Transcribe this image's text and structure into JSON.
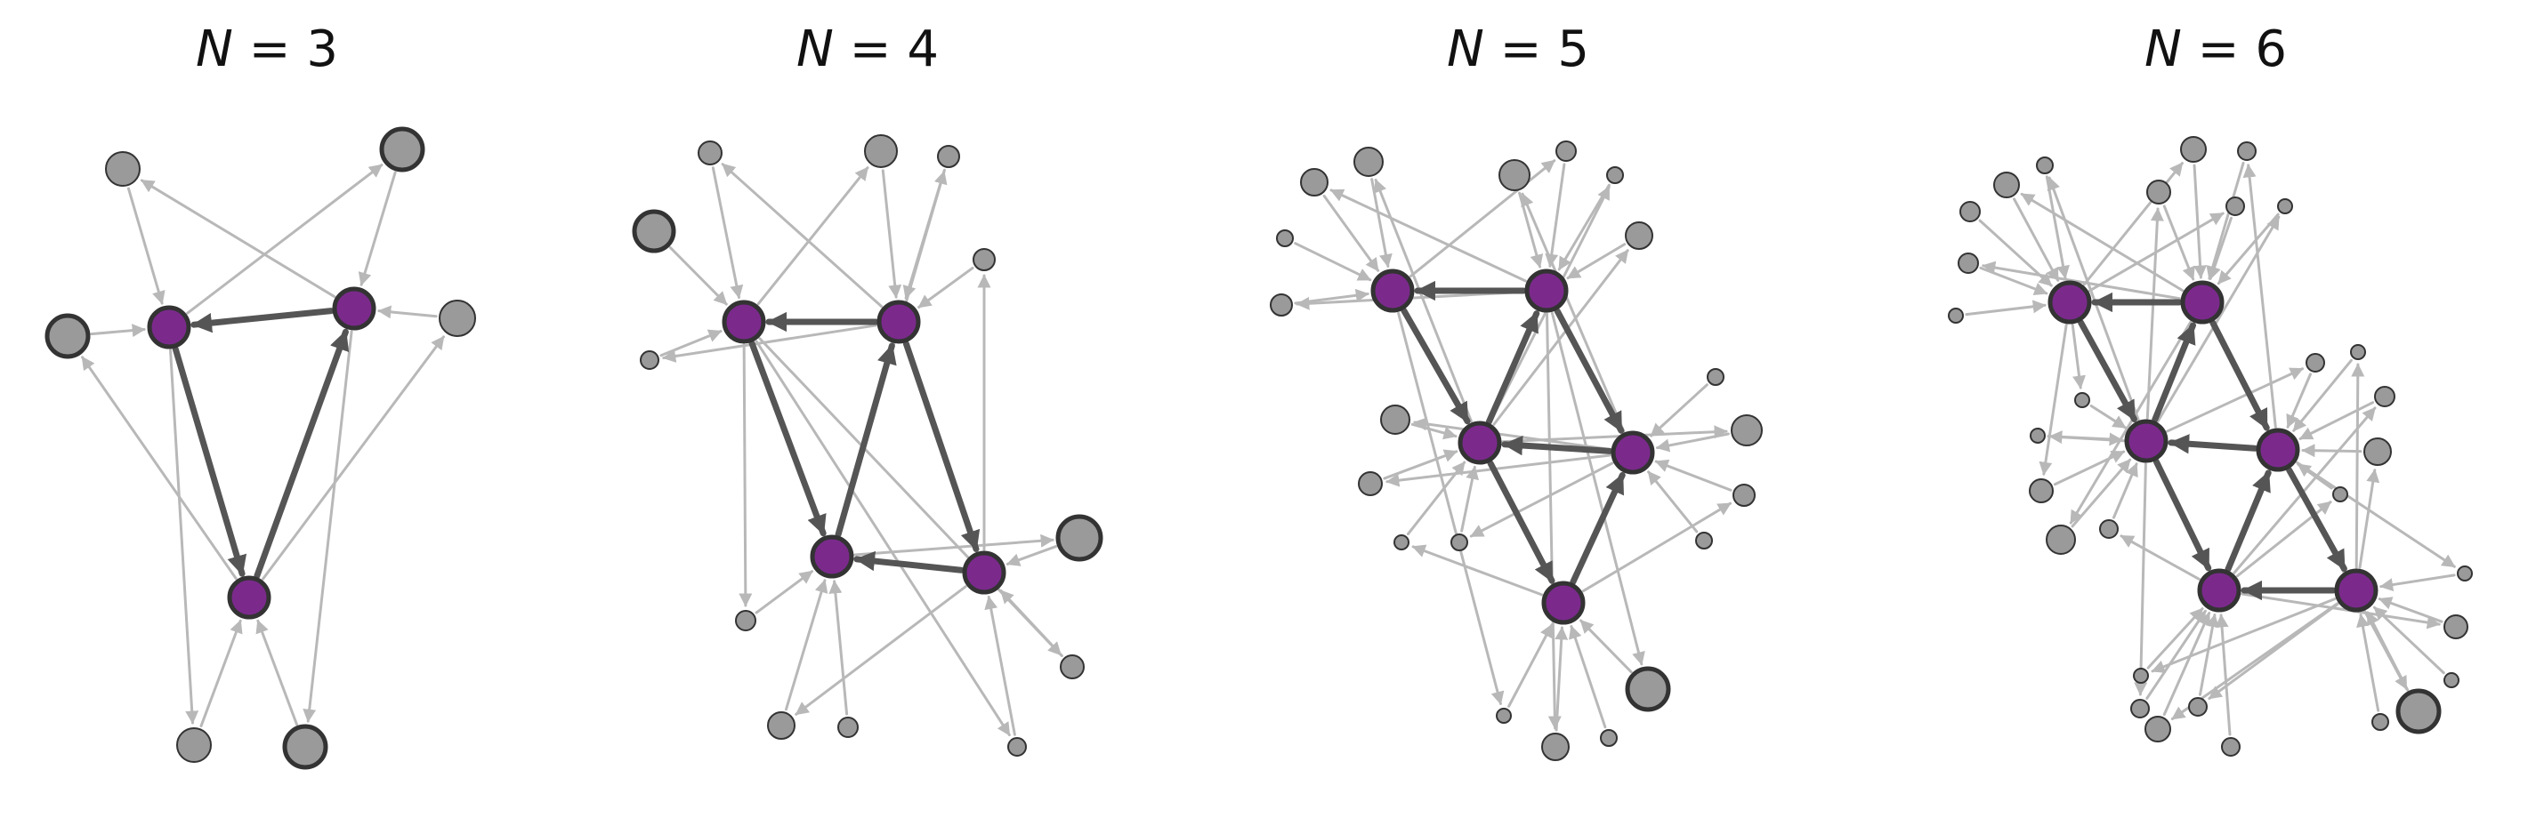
{
  "panels": [
    {
      "title_var": "N",
      "title_rest": " = 3"
    },
    {
      "title_var": "N",
      "title_rest": " = 4"
    },
    {
      "title_var": "N",
      "title_rest": " = 5"
    },
    {
      "title_var": "N",
      "title_rest": " = 6"
    }
  ],
  "colors": {
    "core_node": "#7b2a8c",
    "core_stroke": "#333333",
    "peripheral_node": "#9a9a9a",
    "peripheral_stroke": "#333333",
    "core_edge": "#555555",
    "peripheral_edge": "#b8b8b8"
  }
}
